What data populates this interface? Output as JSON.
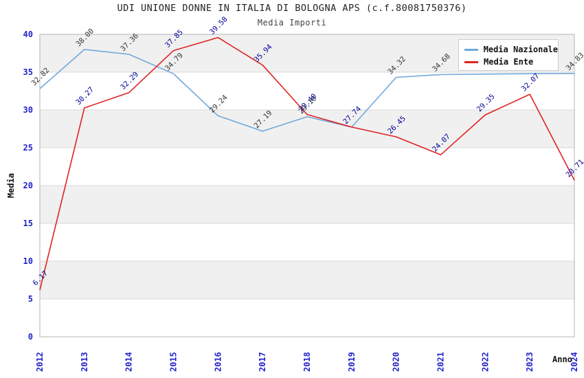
{
  "title": "UDI UNIONE DONNE IN ITALIA DI BOLOGNA APS (c.f.80081750376)",
  "subtitle": "Media Importi",
  "chart_data": {
    "type": "line",
    "x": [
      2012,
      2013,
      2014,
      2015,
      2016,
      2017,
      2018,
      2019,
      2020,
      2021,
      2022,
      2023,
      2024
    ],
    "xlabel": "Anno",
    "ylabel": "Media",
    "ylim": [
      0,
      40
    ],
    "ytick_step": 5,
    "grid": "horizontal gridlines with alternating gray bands",
    "legend_position": "top-right",
    "colors": {
      "axis_ticks": "#2222cc",
      "band_gray": "#f0f0f0",
      "gridline": "#d8d8d8",
      "plot_border": "#b4b4b4",
      "axis_title": "#111111"
    },
    "series": [
      {
        "name": "Media Nazionale",
        "color": "#6fa8dc",
        "label_color": "#333333",
        "values": [
          32.82,
          38.0,
          37.36,
          34.79,
          29.24,
          27.19,
          29.1,
          27.74,
          34.32,
          34.68,
          34.75,
          34.8,
          34.83
        ],
        "point_labels": [
          "32.82",
          "38.00",
          "37.36",
          "34.79",
          "29.24",
          "27.19",
          "29.10",
          "",
          "34.32",
          "34.68",
          "",
          "",
          "34.83"
        ]
      },
      {
        "name": "Media Ente",
        "color": "#e02222",
        "label_color": "#000099",
        "values": [
          6.17,
          30.27,
          32.29,
          37.85,
          39.58,
          35.94,
          29.4,
          27.74,
          26.45,
          24.07,
          29.35,
          32.07,
          20.71
        ],
        "point_labels": [
          "6.17",
          "30.27",
          "32.29",
          "37.85",
          "39.58",
          "35.94",
          "29.40",
          "27.74",
          "26.45",
          "24.07",
          "29.35",
          "32.07",
          "20.71"
        ]
      }
    ]
  }
}
